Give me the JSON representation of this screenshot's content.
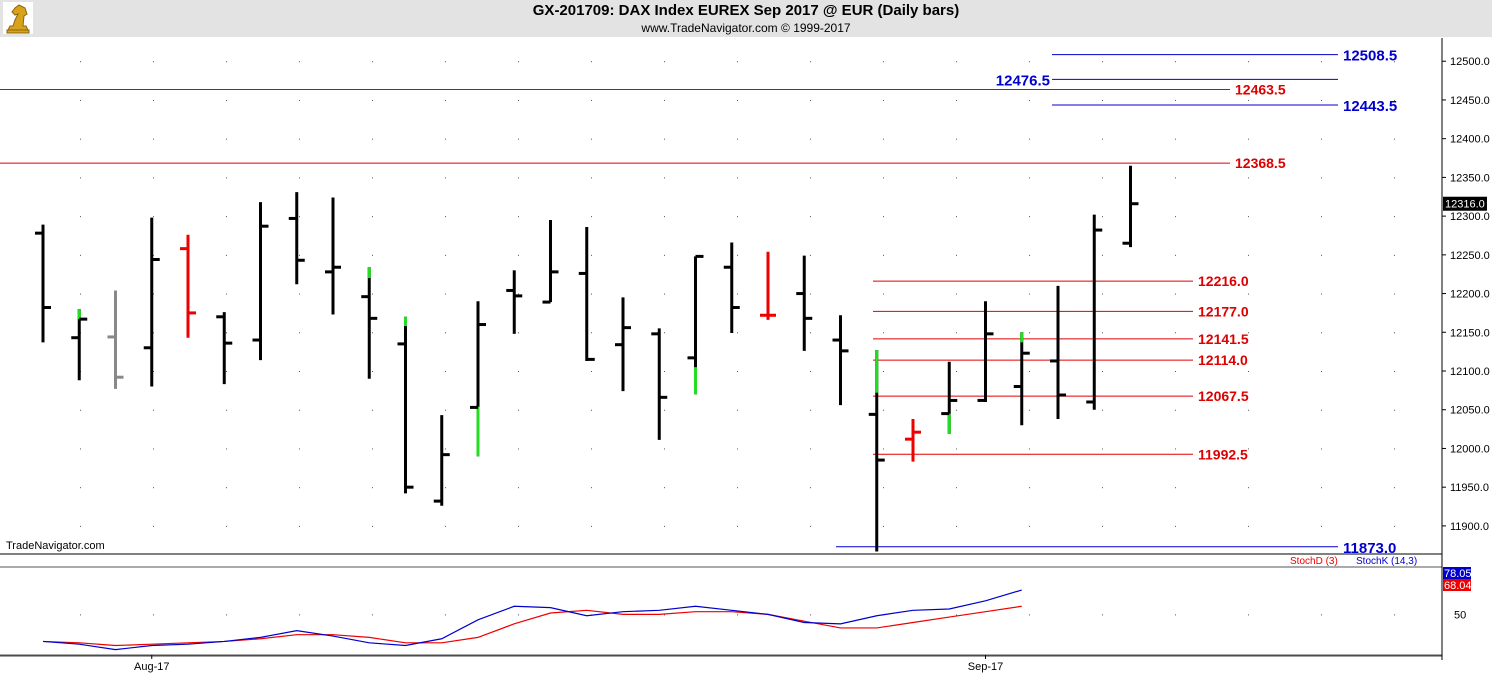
{
  "header": {
    "title": "GX-201709:  DAX Index EUREX Sep 2017 @ EUR  (Daily bars)",
    "subtitle": "www.TradeNavigator.com © 1999-2017",
    "watermark": "TradeNavigator.com"
  },
  "colors": {
    "up_bar": "#000000",
    "highlight_green": "#22dd22",
    "highlight_red": "#ee0000",
    "highlight_gray": "#888888",
    "level_red": "#dd0000",
    "level_blue": "#0000cc",
    "stoch_d": "#ee0000",
    "stoch_k": "#0000cc"
  },
  "chart_data": [
    {
      "type": "ohlc",
      "title": "GX-201709:  DAX Index EUREX Sep 2017 @ EUR  (Daily bars)",
      "ylim": [
        11865,
        12530
      ],
      "y_ticks": [
        "11900.0",
        "11950.0",
        "12000.0",
        "12050.0",
        "12100.0",
        "12150.0",
        "12200.0",
        "12250.0",
        "12300.0",
        "12350.0",
        "12400.0",
        "12450.0",
        "12500.0"
      ],
      "x_labels": [
        {
          "label": "Aug-17",
          "bar": 3
        },
        {
          "label": "Sep-17",
          "bar": 26
        }
      ],
      "last_price_label": "12316.0",
      "last_price": 12316,
      "bars": [
        {
          "o": 12278,
          "h": 12289,
          "l": 12137,
          "c": 12182,
          "color": "black",
          "hl_color": null
        },
        {
          "o": 12143,
          "h": 12180,
          "l": 12088,
          "c": 12167,
          "color": "black",
          "hl": [
            12167,
            12180
          ],
          "hl_color": "green"
        },
        {
          "o": 12144,
          "h": 12204,
          "l": 12077,
          "c": 12092,
          "color": "gray",
          "hl_color": null
        },
        {
          "o": 12130,
          "h": 12298,
          "l": 12080,
          "c": 12244,
          "color": "black",
          "hl_color": null
        },
        {
          "o": 12258,
          "h": 12276,
          "l": 12143,
          "c": 12175,
          "color": "red",
          "hl_color": null
        },
        {
          "o": 12170,
          "h": 12176,
          "l": 12083,
          "c": 12136,
          "color": "black",
          "hl_color": null
        },
        {
          "o": 12140,
          "h": 12318,
          "l": 12114,
          "c": 12287,
          "color": "black",
          "hl_color": null
        },
        {
          "o": 12297,
          "h": 12331,
          "l": 12212,
          "c": 12243,
          "color": "black",
          "hl_color": null
        },
        {
          "o": 12228,
          "h": 12324,
          "l": 12173,
          "c": 12234,
          "color": "black",
          "hl_color": null
        },
        {
          "o": 12196,
          "h": 12234,
          "l": 12090,
          "c": 12168,
          "color": "black",
          "hl": [
            12220,
            12234
          ],
          "hl_color": "green"
        },
        {
          "o": 12135,
          "h": 12170,
          "l": 11942,
          "c": 11950,
          "color": "black",
          "hl": [
            12158,
            12170
          ],
          "hl_color": "green"
        },
        {
          "o": 11932,
          "h": 12043,
          "l": 11926,
          "c": 11992,
          "color": "black",
          "hl_color": null
        },
        {
          "o": 12053,
          "h": 12190,
          "l": 11990,
          "c": 12160,
          "color": "black",
          "hl": [
            11990,
            12054
          ],
          "hl_color": "green"
        },
        {
          "o": 12204,
          "h": 12230,
          "l": 12148,
          "c": 12197,
          "color": "black",
          "hl_color": null
        },
        {
          "o": 12189,
          "h": 12295,
          "l": 12189,
          "c": 12228,
          "color": "black",
          "hl_color": null
        },
        {
          "o": 12226,
          "h": 12286,
          "l": 12113,
          "c": 12115,
          "color": "black",
          "hl_color": null
        },
        {
          "o": 12134,
          "h": 12195,
          "l": 12074,
          "c": 12156,
          "color": "black",
          "hl_color": null
        },
        {
          "o": 12148,
          "h": 12155,
          "l": 12011,
          "c": 12066,
          "color": "black",
          "hl_color": null
        },
        {
          "o": 12117,
          "h": 12248,
          "l": 12070,
          "c": 12248,
          "color": "black",
          "hl": [
            12070,
            12105
          ],
          "hl_color": "green"
        },
        {
          "o": 12234,
          "h": 12266,
          "l": 12149,
          "c": 12182,
          "color": "black",
          "hl_color": null
        },
        {
          "o": 12172,
          "h": 12254,
          "l": 12166,
          "c": 12172,
          "color": "red",
          "hl_color": null
        },
        {
          "o": 12200,
          "h": 12249,
          "l": 12126,
          "c": 12168,
          "color": "black",
          "hl_color": null
        },
        {
          "o": 12140,
          "h": 12172,
          "l": 12056,
          "c": 12126,
          "color": "black",
          "hl_color": null
        },
        {
          "o": 12044,
          "h": 12127,
          "l": 11867,
          "c": 11985,
          "color": "black",
          "hl": [
            12072,
            12127
          ],
          "hl_color": "green"
        },
        {
          "o": 12012,
          "h": 12038,
          "l": 11983,
          "c": 12021,
          "color": "red",
          "hl_color": null
        },
        {
          "o": 12045,
          "h": 12112,
          "l": 12019,
          "c": 12062,
          "color": "black",
          "hl": [
            12019,
            12045
          ],
          "hl_color": "green"
        },
        {
          "o": 12062,
          "h": 12190,
          "l": 12060,
          "c": 12148,
          "color": "black",
          "hl_color": null
        },
        {
          "o": 12080,
          "h": 12150,
          "l": 12030,
          "c": 12123,
          "color": "black",
          "hl": [
            12137,
            12150
          ],
          "hl_color": "green"
        },
        {
          "o": 12113,
          "h": 12210,
          "l": 12038,
          "c": 12069,
          "color": "black",
          "hl_color": null
        },
        {
          "o": 12060,
          "h": 12302,
          "l": 12050,
          "c": 12282,
          "color": "black",
          "hl_color": null
        },
        {
          "o": 12265,
          "h": 12365,
          "l": 12260,
          "c": 12316,
          "color": "black",
          "hl_color": null
        }
      ],
      "levels_red": [
        {
          "value": 12463.5,
          "label": "12463.5",
          "full": true
        },
        {
          "value": 12368.5,
          "label": "12368.5",
          "full": true
        },
        {
          "value": 12216.0,
          "label": "12216.0",
          "full": false
        },
        {
          "value": 12177.0,
          "label": "12177.0",
          "full": false
        },
        {
          "value": 12141.5,
          "label": "12141.5",
          "full": false
        },
        {
          "value": 12114.0,
          "label": "12114.0",
          "full": false
        },
        {
          "value": 12067.5,
          "label": "12067.5",
          "full": false
        },
        {
          "value": 11992.5,
          "label": "11992.5",
          "full": false
        }
      ],
      "levels_blue": [
        {
          "value": 12508.5,
          "label": "12508.5",
          "side": "right"
        },
        {
          "value": 12476.5,
          "label": "12476.5",
          "side": "left"
        },
        {
          "value": 12443.5,
          "label": "12443.5",
          "side": "right"
        },
        {
          "value": 11873.0,
          "label": "11873.0",
          "side": "right"
        }
      ]
    },
    {
      "type": "line",
      "title": "",
      "ylim": [
        20,
        85
      ],
      "y_ticks": [
        "50"
      ],
      "series": [
        {
          "name": "StochD (3)",
          "color": "#ee0000",
          "values": [
            30,
            29,
            27,
            28,
            29,
            30,
            32,
            35,
            35,
            33,
            29,
            29,
            33,
            43,
            51,
            53,
            50,
            50,
            52,
            52,
            50,
            45,
            40,
            40,
            44,
            48,
            52,
            56
          ]
        },
        {
          "name": "StochK (14,3)",
          "color": "#0000cc",
          "values": [
            30,
            28,
            24,
            27,
            28,
            30,
            33,
            38,
            34,
            29,
            27,
            32,
            46,
            56,
            55,
            49,
            52,
            53,
            56,
            53,
            50,
            44,
            43,
            49,
            53,
            54,
            60,
            68
          ]
        }
      ],
      "last_values": [
        "78.05",
        "68.04"
      ]
    }
  ]
}
